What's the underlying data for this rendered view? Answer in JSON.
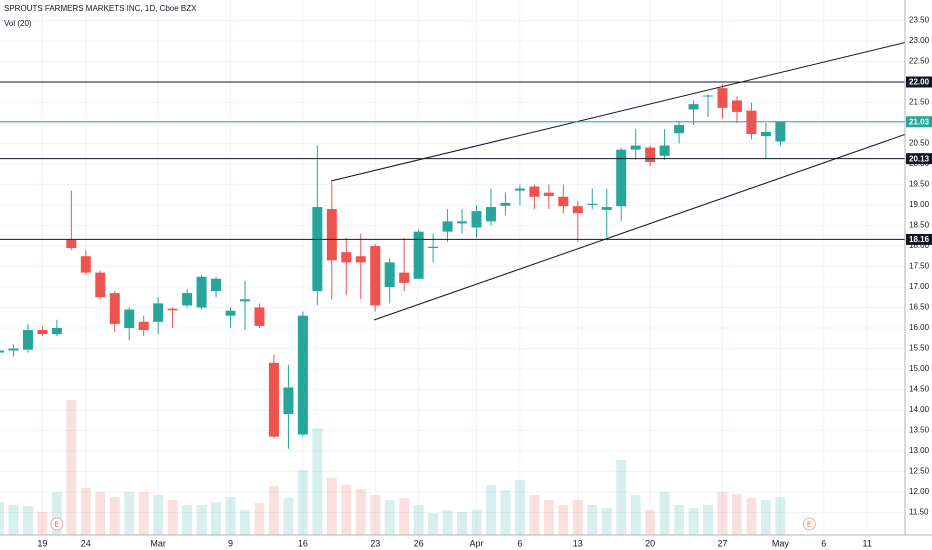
{
  "chart_data": {
    "type": "candlestick",
    "title": "SPROUTS FARMERS MARKETS INC, 1D, Cboe BZX",
    "volume_label": "Vol (20)",
    "categories": [
      null,
      null,
      null,
      "19",
      null,
      null,
      "24",
      null,
      null,
      null,
      null,
      "Mar",
      null,
      null,
      null,
      null,
      "9",
      null,
      null,
      null,
      null,
      "16",
      null,
      null,
      null,
      null,
      "23",
      null,
      null,
      "26",
      null,
      null,
      null,
      "Apr",
      null,
      null,
      "6",
      null,
      null,
      null,
      "13",
      null,
      null,
      null,
      null,
      "20",
      null,
      null,
      null,
      null,
      "27",
      null,
      null,
      null,
      "May",
      null,
      null,
      "6",
      null,
      null,
      "11"
    ],
    "open": [
      15.4,
      15.45,
      15.47,
      15.95,
      15.85,
      18.15,
      17.75,
      17.35,
      16.85,
      16.0,
      16.15,
      16.15,
      16.47,
      16.55,
      16.5,
      16.9,
      16.3,
      16.65,
      16.5,
      15.15,
      13.9,
      13.4,
      16.9,
      18.9,
      17.85,
      17.75,
      18.0,
      17.0,
      17.35,
      17.2,
      17.95,
      18.35,
      18.55,
      18.45,
      18.6,
      18.98,
      19.35,
      19.45,
      19.3,
      19.2,
      18.97,
      19.0,
      18.88,
      18.97,
      20.35,
      20.4,
      20.2,
      20.75,
      21.33,
      21.65,
      21.85,
      21.55,
      21.3,
      20.68,
      20.55,
      null,
      null,
      null,
      null,
      null,
      null
    ],
    "high": [
      15.5,
      15.6,
      16.1,
      16.05,
      16.2,
      19.35,
      17.9,
      17.4,
      16.9,
      16.5,
      16.3,
      16.75,
      16.5,
      16.95,
      17.3,
      17.25,
      16.5,
      17.15,
      16.6,
      15.35,
      15.1,
      16.4,
      20.45,
      19.55,
      18.2,
      18.3,
      18.05,
      17.7,
      18.2,
      18.4,
      18.3,
      18.9,
      18.9,
      19.0,
      19.4,
      19.3,
      19.5,
      19.5,
      19.5,
      19.5,
      19.1,
      19.4,
      19.4,
      20.4,
      20.85,
      20.45,
      20.85,
      21.05,
      21.55,
      21.7,
      21.95,
      21.65,
      21.5,
      21.0,
      21.05,
      null,
      null,
      null,
      null,
      null,
      null
    ],
    "low": [
      15.3,
      15.3,
      15.4,
      15.8,
      15.8,
      17.9,
      17.3,
      16.7,
      15.9,
      15.7,
      15.8,
      15.85,
      16.0,
      16.5,
      16.45,
      16.75,
      16.0,
      15.95,
      16.0,
      13.3,
      13.05,
      13.35,
      16.55,
      16.7,
      16.8,
      16.7,
      16.4,
      16.6,
      16.9,
      17.2,
      17.6,
      18.1,
      18.3,
      18.2,
      18.5,
      18.75,
      19.0,
      18.9,
      18.9,
      18.8,
      18.1,
      18.9,
      18.2,
      18.6,
      20.1,
      19.95,
      20.1,
      20.5,
      20.95,
      21.15,
      21.1,
      21.0,
      20.6,
      20.13,
      20.45,
      null,
      null,
      null,
      null,
      null,
      null
    ],
    "close": [
      15.45,
      15.5,
      15.95,
      15.85,
      16.0,
      17.95,
      17.35,
      16.75,
      16.1,
      16.45,
      15.95,
      16.6,
      16.43,
      16.85,
      17.25,
      17.2,
      16.42,
      16.7,
      16.05,
      13.35,
      14.55,
      16.3,
      18.95,
      17.65,
      17.6,
      17.6,
      16.55,
      17.6,
      17.1,
      18.35,
      17.98,
      18.6,
      18.6,
      18.85,
      18.95,
      19.05,
      19.4,
      19.2,
      19.22,
      18.97,
      18.8,
      19.03,
      18.95,
      20.35,
      20.45,
      20.05,
      20.45,
      20.95,
      21.46,
      21.67,
      21.37,
      21.27,
      20.73,
      20.78,
      21.03,
      null,
      null,
      null,
      null,
      null,
      null
    ],
    "volume": [
      1.65,
      1.5,
      1.45,
      1.15,
      2.15,
      6.75,
      2.35,
      2.15,
      1.9,
      2.15,
      2.15,
      2.0,
      1.75,
      1.5,
      1.5,
      1.65,
      1.9,
      1.25,
      1.6,
      2.45,
      1.85,
      3.25,
      5.35,
      2.85,
      2.5,
      2.3,
      2.0,
      1.75,
      1.85,
      1.5,
      1.1,
      1.25,
      1.15,
      1.25,
      2.5,
      2.25,
      2.75,
      2.0,
      1.75,
      1.5,
      1.75,
      1.5,
      1.35,
      3.75,
      2.0,
      1.25,
      2.15,
      1.5,
      1.35,
      1.5,
      2.15,
      2.05,
      1.85,
      1.75,
      1.9,
      null,
      null,
      null,
      null,
      null,
      null
    ],
    "earnings": [
      null,
      null,
      null,
      null,
      "E",
      null,
      null,
      null,
      null,
      null,
      null,
      null,
      null,
      null,
      null,
      null,
      null,
      null,
      null,
      null,
      null,
      null,
      null,
      null,
      null,
      null,
      null,
      null,
      null,
      null,
      null,
      null,
      null,
      null,
      null,
      null,
      null,
      null,
      null,
      null,
      null,
      null,
      null,
      null,
      null,
      null,
      null,
      null,
      null,
      null,
      null,
      null,
      null,
      null,
      null,
      null,
      "E",
      null,
      null,
      null,
      null
    ],
    "up_color": "#26a69a",
    "down_color": "#ef5350",
    "ylim": [
      10.95,
      24.0
    ],
    "yticks": [
      {
        "value": 11.5,
        "label": "11.50"
      },
      {
        "value": 12,
        "label": "12.00"
      },
      {
        "value": 12.5,
        "label": "12.50"
      },
      {
        "value": 13,
        "label": "13.00"
      },
      {
        "value": 13.5,
        "label": "13.50"
      },
      {
        "value": 14,
        "label": "14.00"
      },
      {
        "value": 14.5,
        "label": "14.50"
      },
      {
        "value": 15,
        "label": "15.00"
      },
      {
        "value": 15.5,
        "label": "15.50"
      },
      {
        "value": 16,
        "label": "16.00"
      },
      {
        "value": 16.5,
        "label": "16.50"
      },
      {
        "value": 17,
        "label": "17.00"
      },
      {
        "value": 17.5,
        "label": "17.50"
      },
      {
        "value": 18,
        "label": "18.00"
      },
      {
        "value": 18.5,
        "label": "18.50"
      },
      {
        "value": 19,
        "label": "19.00"
      },
      {
        "value": 19.5,
        "label": "19.50"
      },
      {
        "value": 20,
        "label": "20.00"
      },
      {
        "value": 20.5,
        "label": "20.50"
      },
      {
        "value": 21,
        "label": "21.00"
      },
      {
        "value": 21.5,
        "label": "21.50"
      },
      {
        "value": 22,
        "label": "22.00"
      },
      {
        "value": 22.5,
        "label": "22.50"
      },
      {
        "value": 23,
        "label": "23.00"
      },
      {
        "value": 23.5,
        "label": "23.50"
      }
    ],
    "price_lines": [
      {
        "value": 22,
        "label": "22.00",
        "color": "#131722"
      },
      {
        "value": 21.03,
        "label": "21.03",
        "color": "#26a69a"
      },
      {
        "value": 20.13,
        "label": "20.13",
        "color": "#131722"
      },
      {
        "value": 18.16,
        "label": "18.16",
        "color": "#131722"
      }
    ],
    "grid": true
  }
}
